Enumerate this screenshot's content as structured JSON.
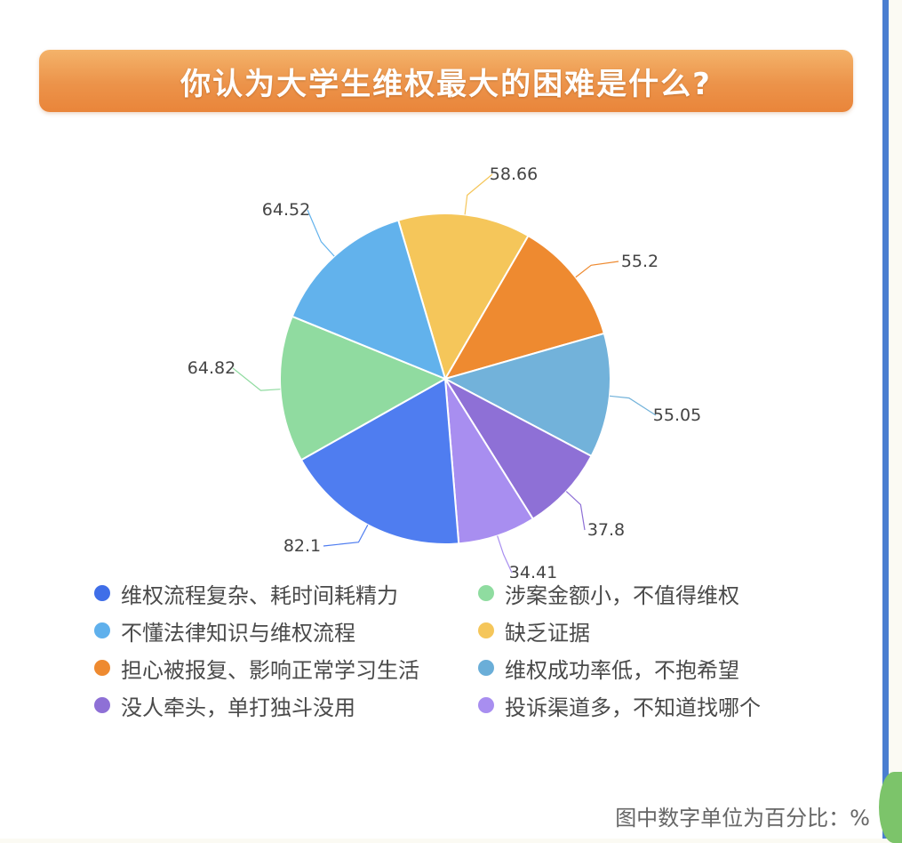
{
  "title": "你认为大学生维权最大的困难是什么?",
  "chart_data": {
    "type": "pie",
    "unit_note": "图中数字单位为百分比：%",
    "slices": [
      {
        "label": "维权流程复杂、耗时间耗精力",
        "value": 82.1,
        "color": "#4f7df0"
      },
      {
        "label": "涉案金额小，不值得维权",
        "value": 64.82,
        "color": "#90dba0"
      },
      {
        "label": "不懂法律知识与维权流程",
        "value": 64.52,
        "color": "#62b2ec"
      },
      {
        "label": "缺乏证据",
        "value": 58.66,
        "color": "#f5c65a"
      },
      {
        "label": "担心被报复、影响正常学习生活",
        "value": 55.2,
        "color": "#ee8a30"
      },
      {
        "label": "维权成功率低，不抱希望",
        "value": 55.05,
        "color": "#72b2da"
      },
      {
        "label": "没人牵头，单打独斗没用",
        "value": 37.8,
        "color": "#8e70d6"
      },
      {
        "label": "投诉渠道多，不知道找哪个",
        "value": 34.41,
        "color": "#a88ef0"
      }
    ],
    "value_labels": [
      "82.1",
      "64.82",
      "64.52",
      "58.66",
      "55.2",
      "55.05",
      "37.8",
      "34.41"
    ]
  },
  "legend": [
    {
      "label": "维权流程复杂、耗时间耗精力",
      "color": "#3f6ee8"
    },
    {
      "label": "涉案金额小，不值得维权",
      "color": "#8fdca0"
    },
    {
      "label": "不懂法律知识与维权流程",
      "color": "#5fb0ec"
    },
    {
      "label": "缺乏证据",
      "color": "#f5c65a"
    },
    {
      "label": "担心被报复、影响正常学习生活",
      "color": "#ee8a30"
    },
    {
      "label": "维权成功率低，不抱希望",
      "color": "#6aaed8"
    },
    {
      "label": "没人牵头，单打独斗没用",
      "color": "#8e70d6"
    },
    {
      "label": "投诉渠道多，不知道找哪个",
      "color": "#a88ef0"
    }
  ]
}
